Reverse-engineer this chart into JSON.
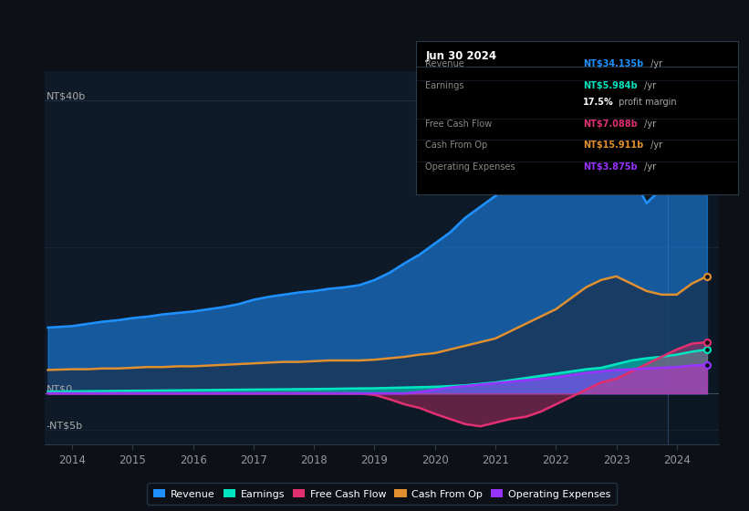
{
  "bg_color": "#0d1117",
  "plot_bg_color": "#0e1a27",
  "grid_color": "#1e2d3d",
  "ylabel_top": "NT$40b",
  "ylabel_zero": "NT$0",
  "ylabel_bottom": "-NT$5b",
  "revenue_color": "#1e90ff",
  "earnings_color": "#00e5c0",
  "fcf_color": "#e03070",
  "cashop_color": "#e09030",
  "opex_color": "#9933ff",
  "legend_labels": [
    "Revenue",
    "Earnings",
    "Free Cash Flow",
    "Cash From Op",
    "Operating Expenses"
  ],
  "tooltip_title": "Jun 30 2024",
  "tooltip_rows": [
    {
      "label": "Revenue",
      "value": "NT$34.135b",
      "unit": " /yr",
      "color": "#1e90ff"
    },
    {
      "label": "Earnings",
      "value": "NT$5.984b",
      "unit": " /yr",
      "color": "#00e5c0"
    },
    {
      "label": "",
      "value": "17.5%",
      "unit": " profit margin",
      "color": "white"
    },
    {
      "label": "Free Cash Flow",
      "value": "NT$7.088b",
      "unit": " /yr",
      "color": "#e03070"
    },
    {
      "label": "Cash From Op",
      "value": "NT$15.911b",
      "unit": " /yr",
      "color": "#e09030"
    },
    {
      "label": "Operating Expenses",
      "value": "NT$3.875b",
      "unit": " /yr",
      "color": "#9933ff"
    }
  ],
  "t": [
    2013.6,
    2014.0,
    2014.25,
    2014.5,
    2014.75,
    2015.0,
    2015.25,
    2015.5,
    2015.75,
    2016.0,
    2016.25,
    2016.5,
    2016.75,
    2017.0,
    2017.25,
    2017.5,
    2017.75,
    2018.0,
    2018.25,
    2018.5,
    2018.75,
    2019.0,
    2019.25,
    2019.5,
    2019.75,
    2020.0,
    2020.25,
    2020.5,
    2020.75,
    2021.0,
    2021.25,
    2021.5,
    2021.75,
    2022.0,
    2022.25,
    2022.5,
    2022.75,
    2023.0,
    2023.25,
    2023.5,
    2023.75,
    2024.0,
    2024.25,
    2024.5
  ],
  "revenue": [
    9.0,
    9.2,
    9.5,
    9.8,
    10.0,
    10.3,
    10.5,
    10.8,
    11.0,
    11.2,
    11.5,
    11.8,
    12.2,
    12.8,
    13.2,
    13.5,
    13.8,
    14.0,
    14.3,
    14.5,
    14.8,
    15.5,
    16.5,
    17.8,
    19.0,
    20.5,
    22.0,
    24.0,
    25.5,
    27.0,
    28.5,
    30.0,
    32.0,
    34.5,
    36.5,
    37.8,
    36.0,
    34.5,
    30.0,
    26.0,
    28.0,
    30.5,
    33.0,
    34.0
  ],
  "cash_from_op": [
    3.2,
    3.3,
    3.3,
    3.4,
    3.4,
    3.5,
    3.6,
    3.6,
    3.7,
    3.7,
    3.8,
    3.9,
    4.0,
    4.1,
    4.2,
    4.3,
    4.3,
    4.4,
    4.5,
    4.5,
    4.5,
    4.6,
    4.8,
    5.0,
    5.3,
    5.5,
    6.0,
    6.5,
    7.0,
    7.5,
    8.5,
    9.5,
    10.5,
    11.5,
    13.0,
    14.5,
    15.5,
    16.0,
    15.0,
    14.0,
    13.5,
    13.5,
    15.0,
    16.0
  ],
  "earnings": [
    0.25,
    0.28,
    0.3,
    0.32,
    0.34,
    0.36,
    0.38,
    0.4,
    0.42,
    0.44,
    0.46,
    0.48,
    0.5,
    0.52,
    0.54,
    0.56,
    0.58,
    0.6,
    0.62,
    0.65,
    0.68,
    0.7,
    0.75,
    0.8,
    0.85,
    0.9,
    1.0,
    1.1,
    1.3,
    1.5,
    1.8,
    2.1,
    2.4,
    2.7,
    3.0,
    3.3,
    3.5,
    4.0,
    4.5,
    4.8,
    5.0,
    5.3,
    5.7,
    6.0
  ],
  "free_cash_flow": [
    0.0,
    0.0,
    0.0,
    0.0,
    0.0,
    0.0,
    0.0,
    0.0,
    0.0,
    0.0,
    0.0,
    0.0,
    0.0,
    0.0,
    0.0,
    0.0,
    0.0,
    0.0,
    0.0,
    0.0,
    0.0,
    -0.2,
    -0.8,
    -1.5,
    -2.0,
    -2.8,
    -3.5,
    -4.2,
    -4.5,
    -4.0,
    -3.5,
    -3.2,
    -2.5,
    -1.5,
    -0.5,
    0.5,
    1.5,
    2.0,
    3.0,
    4.0,
    5.0,
    6.0,
    6.8,
    7.0
  ],
  "operating_expenses": [
    0.0,
    0.0,
    0.0,
    0.0,
    0.0,
    0.0,
    0.0,
    0.0,
    0.0,
    0.0,
    0.0,
    0.0,
    0.0,
    0.0,
    0.0,
    0.0,
    0.0,
    0.0,
    0.0,
    0.0,
    0.0,
    0.0,
    0.0,
    0.0,
    0.2,
    0.5,
    0.8,
    1.0,
    1.2,
    1.4,
    1.6,
    1.8,
    2.0,
    2.2,
    2.5,
    2.8,
    3.0,
    3.2,
    3.3,
    3.4,
    3.5,
    3.6,
    3.8,
    3.9
  ],
  "xlim": [
    2013.55,
    2024.7
  ],
  "ylim": [
    -7,
    44
  ],
  "xtick_years": [
    2014,
    2015,
    2016,
    2017,
    2018,
    2019,
    2020,
    2021,
    2022,
    2023,
    2024
  ]
}
